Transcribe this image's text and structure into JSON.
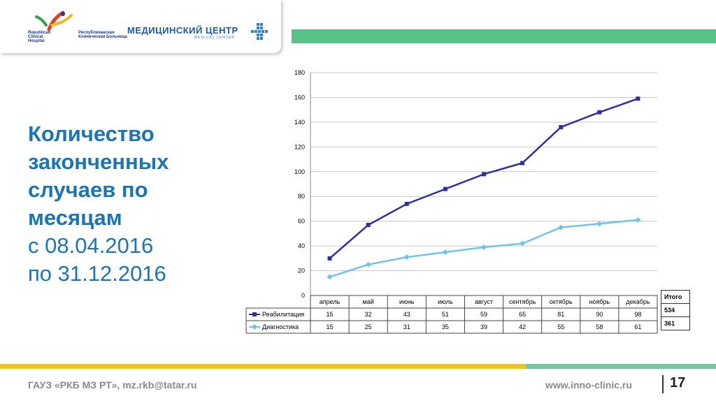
{
  "header": {
    "rkb_logo": {
      "en": "Republican Clinical Hospital",
      "ru": "Республиканская Клиническая Больница"
    },
    "mc_logo": {
      "ru": "МЕДИЦИНСКИЙ ЦЕНТР",
      "en": "MEDICAL CENTER"
    },
    "accent_color": "#57c38b"
  },
  "title": {
    "bold": "Количество законченных случаев по месяцам",
    "from": "с 08.04.2016",
    "to": "по 31.12.2016",
    "color": "#1c74b8"
  },
  "chart_data": {
    "type": "line",
    "categories": [
      "апрель",
      "май",
      "июнь",
      "июль",
      "август",
      "сентябрь",
      "октябрь",
      "ноябрь",
      "декабрь"
    ],
    "series": [
      {
        "name": "Реабилитация",
        "values": [
          15,
          32,
          43,
          51,
          59,
          65,
          81,
          90,
          98
        ],
        "plotted": [
          30,
          57,
          74,
          86,
          98,
          107,
          136,
          148,
          159
        ],
        "color": "#2e2fa8",
        "marker": "square"
      },
      {
        "name": "Диагностика",
        "values": [
          15,
          25,
          31,
          35,
          39,
          42,
          55,
          58,
          61
        ],
        "plotted": [
          15,
          25,
          31,
          35,
          39,
          42,
          55,
          58,
          61
        ],
        "color": "#6cc4ee",
        "marker": "diamond"
      }
    ],
    "ylim": [
      0,
      180
    ],
    "yticks": [
      "0",
      "20",
      "40",
      "60",
      "80",
      "100",
      "120",
      "140",
      "160",
      "180"
    ],
    "grid": true,
    "data_table": true
  },
  "totals": {
    "header": "Итого",
    "values": [
      "534",
      "361"
    ]
  },
  "footer": {
    "left": "ГАУЗ «РКБ МЗ РТ»,  mz.rkb@tatar.ru",
    "right": "www.inno-clinic.ru",
    "page": "17",
    "stripes": [
      "#f0c21b",
      "#6fc8a0"
    ]
  }
}
